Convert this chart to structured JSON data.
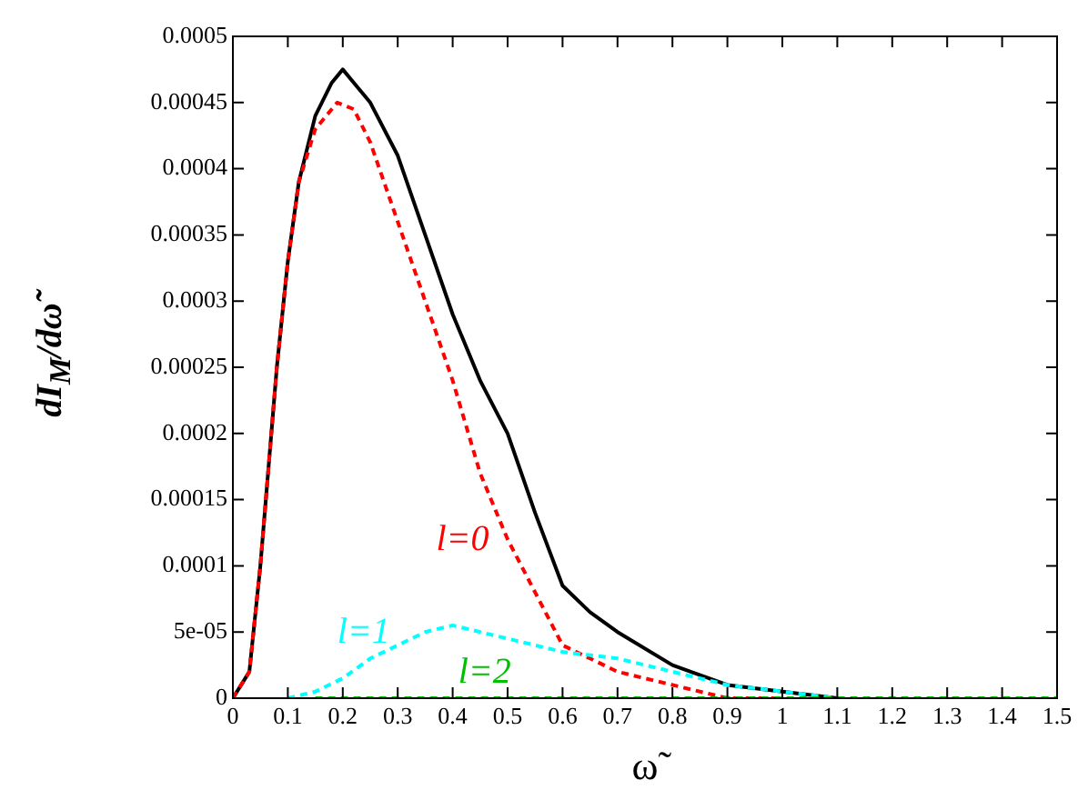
{
  "chart_data": {
    "type": "line",
    "xlabel": "ω̃",
    "ylabel": "dI$_{M}$/dω̃",
    "xlim": [
      0,
      1.5
    ],
    "xticks": [
      0,
      0.1,
      0.2,
      0.3,
      0.4,
      0.5,
      0.6,
      0.7,
      0.8,
      0.9,
      1,
      1.1,
      1.2,
      1.3,
      1.4,
      1.5
    ],
    "ylim": [
      0,
      0.0005
    ],
    "yticks": [
      0,
      {
        "value": 5e-05,
        "label": "5e-05"
      },
      0.0001,
      0.00015,
      0.0002,
      0.00025,
      0.0003,
      0.00035,
      0.0004,
      0.00045,
      0.0005
    ],
    "grid": false,
    "legend": false,
    "marker": "none",
    "series": [
      {
        "color": "#000000",
        "line_style": "solid",
        "x": [
          0,
          0.03,
          0.05,
          0.08,
          0.1,
          0.12,
          0.15,
          0.18,
          0.2,
          0.22,
          0.25,
          0.3,
          0.35,
          0.4,
          0.45,
          0.5,
          0.55,
          0.6,
          0.65,
          0.7,
          0.8,
          0.9,
          1,
          1.1
        ],
        "values": [
          0,
          2e-05,
          0.0001,
          0.00025,
          0.00033,
          0.00039,
          0.00044,
          0.000465,
          0.000475,
          0.000465,
          0.00045,
          0.00041,
          0.00035,
          0.00029,
          0.00024,
          0.0002,
          0.00014,
          8.5e-05,
          6.5e-05,
          5e-05,
          2.5e-05,
          1e-05,
          5e-06,
          0
        ]
      },
      {
        "name": "l=0",
        "color": "#ff0000",
        "line_style": "dashed",
        "x": [
          0,
          0.03,
          0.05,
          0.08,
          0.1,
          0.12,
          0.15,
          0.19,
          0.22,
          0.25,
          0.3,
          0.35,
          0.4,
          0.45,
          0.5,
          0.55,
          0.6,
          0.65,
          0.7,
          0.8,
          0.9,
          1
        ],
        "values": [
          0,
          2e-05,
          0.0001,
          0.00025,
          0.00033,
          0.00039,
          0.00043,
          0.00045,
          0.000445,
          0.00042,
          0.00036,
          0.0003,
          0.00024,
          0.00017,
          0.00012,
          8e-05,
          4e-05,
          3e-05,
          2e-05,
          1e-05,
          0,
          0
        ]
      },
      {
        "name": "l=1",
        "color": "#00ffff",
        "line_style": "dashed",
        "x": [
          0.1,
          0.15,
          0.2,
          0.25,
          0.3,
          0.35,
          0.4,
          0.45,
          0.5,
          0.55,
          0.6,
          0.7,
          0.8,
          0.9,
          1,
          1.1
        ],
        "values": [
          0,
          5e-06,
          1.5e-05,
          3e-05,
          4e-05,
          5e-05,
          5.5e-05,
          5e-05,
          4.5e-05,
          4e-05,
          3.5e-05,
          3e-05,
          2e-05,
          1e-05,
          5e-06,
          0
        ]
      },
      {
        "name": "l=2",
        "color": "#00c000",
        "line_style": "dashed",
        "x": [
          0.15,
          0.2,
          0.4,
          0.6,
          0.8,
          1.3,
          1.5
        ],
        "values": [
          0,
          0,
          0,
          0,
          0,
          0,
          0
        ]
      }
    ]
  }
}
